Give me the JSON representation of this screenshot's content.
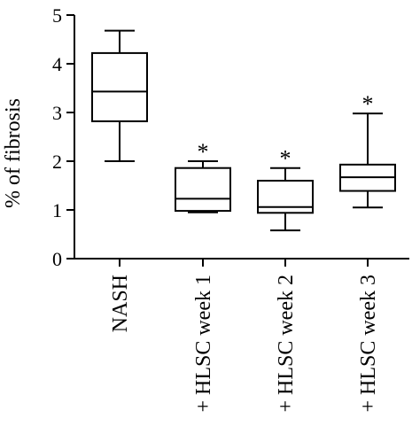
{
  "chart_data": {
    "type": "boxplot",
    "title": "",
    "xlabel": "",
    "ylabel": "% of fibrosis",
    "ylim": [
      0,
      5
    ],
    "yticks": [
      "0",
      "1",
      "2",
      "3",
      "4",
      "5"
    ],
    "grid": false,
    "legend": "none",
    "categories": [
      "NASH",
      "+ HLSC week 1",
      "+ HLSC week 2",
      "+ HLSC week 3"
    ],
    "boxes": [
      {
        "label": "NASH",
        "min": 2.0,
        "q1": 2.82,
        "median": 3.43,
        "q3": 4.22,
        "max": 4.68,
        "annotation": ""
      },
      {
        "label": "+ HLSC week 1",
        "min": 0.95,
        "q1": 0.98,
        "median": 1.23,
        "q3": 1.86,
        "max": 2.0,
        "annotation": "*"
      },
      {
        "label": "+ HLSC week 2",
        "min": 0.58,
        "q1": 0.94,
        "median": 1.06,
        "q3": 1.6,
        "max": 1.86,
        "annotation": "*"
      },
      {
        "label": "+ HLSC week 3",
        "min": 1.05,
        "q1": 1.39,
        "median": 1.67,
        "q3": 1.93,
        "max": 2.98,
        "annotation": "*"
      }
    ]
  },
  "colors": {
    "stroke": "#000000",
    "box_fill": "#ffffff",
    "background": "#ffffff"
  }
}
